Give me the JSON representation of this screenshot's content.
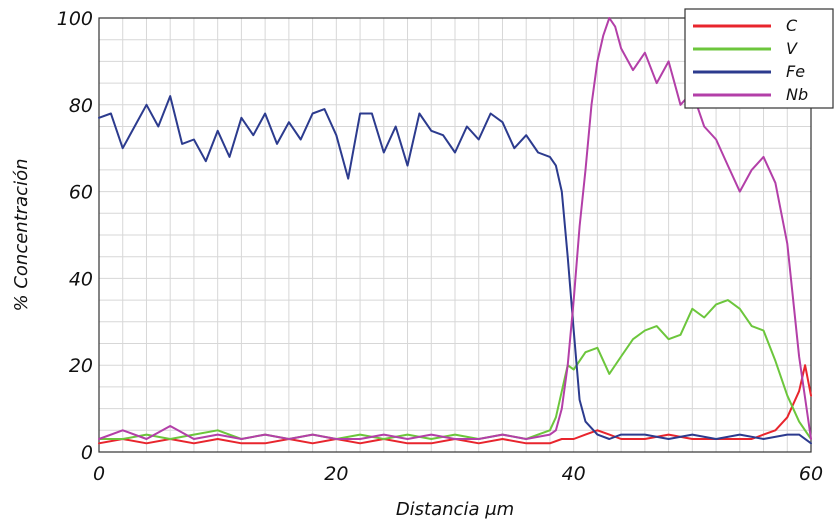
{
  "chart_data": {
    "type": "line",
    "xlabel": "Distancia μm",
    "ylabel": "% Concentración",
    "xlim": [
      0,
      60
    ],
    "ylim": [
      0,
      100
    ],
    "x_ticks": [
      0,
      20,
      40,
      60
    ],
    "y_ticks": [
      0,
      20,
      40,
      60,
      80,
      100
    ],
    "grid": true,
    "legend_position": "top-right",
    "series": [
      {
        "name": "C",
        "color": "#e8252d",
        "x": [
          0,
          2,
          4,
          6,
          8,
          10,
          12,
          14,
          16,
          18,
          20,
          22,
          24,
          26,
          28,
          30,
          32,
          34,
          36,
          38,
          39,
          40,
          41,
          42,
          43,
          44,
          46,
          48,
          50,
          52,
          54,
          55,
          56,
          57,
          58,
          59,
          59.5,
          60
        ],
        "values": [
          2,
          3,
          2,
          3,
          2,
          3,
          2,
          2,
          3,
          2,
          3,
          2,
          3,
          2,
          2,
          3,
          2,
          3,
          2,
          2,
          3,
          3,
          4,
          5,
          4,
          3,
          3,
          4,
          3,
          3,
          3,
          3,
          4,
          5,
          8,
          14,
          20,
          13
        ]
      },
      {
        "name": "V",
        "color": "#6cc63c",
        "x": [
          0,
          2,
          4,
          6,
          8,
          10,
          12,
          14,
          16,
          18,
          20,
          22,
          24,
          26,
          28,
          30,
          32,
          34,
          36,
          37,
          38,
          38.5,
          39,
          39.5,
          40,
          41,
          42,
          43,
          44,
          45,
          46,
          47,
          48,
          49,
          50,
          51,
          52,
          53,
          54,
          55,
          56,
          57,
          58,
          59,
          60
        ],
        "values": [
          3,
          3,
          4,
          3,
          4,
          5,
          3,
          4,
          3,
          4,
          3,
          4,
          3,
          4,
          3,
          4,
          3,
          4,
          3,
          4,
          5,
          8,
          14,
          20,
          19,
          23,
          24,
          18,
          22,
          26,
          28,
          29,
          26,
          27,
          33,
          31,
          34,
          35,
          33,
          29,
          28,
          21,
          13,
          7,
          3
        ]
      },
      {
        "name": "Fe",
        "color": "#2c3b8e",
        "x": [
          0,
          1,
          2,
          3,
          4,
          5,
          6,
          7,
          8,
          9,
          10,
          11,
          12,
          13,
          14,
          15,
          16,
          17,
          18,
          19,
          20,
          21,
          22,
          23,
          24,
          25,
          26,
          27,
          28,
          29,
          30,
          31,
          32,
          33,
          34,
          35,
          36,
          37,
          38,
          38.5,
          39,
          39.5,
          40,
          40.5,
          41,
          42,
          43,
          44,
          46,
          48,
          50,
          52,
          54,
          56,
          58,
          59,
          60
        ],
        "values": [
          77,
          78,
          70,
          75,
          80,
          75,
          82,
          71,
          72,
          67,
          74,
          68,
          77,
          73,
          78,
          71,
          76,
          72,
          78,
          79,
          73,
          63,
          78,
          78,
          69,
          75,
          66,
          78,
          74,
          73,
          69,
          75,
          72,
          78,
          76,
          70,
          73,
          69,
          68,
          66,
          60,
          45,
          28,
          12,
          7,
          4,
          3,
          4,
          4,
          3,
          4,
          3,
          4,
          3,
          4,
          4,
          2
        ]
      },
      {
        "name": "Nb",
        "color": "#b33fa8",
        "x": [
          0,
          2,
          4,
          6,
          8,
          10,
          12,
          14,
          16,
          18,
          20,
          22,
          24,
          26,
          28,
          30,
          32,
          34,
          36,
          38,
          38.5,
          39,
          39.5,
          40,
          40.5,
          41,
          41.5,
          42,
          42.5,
          43,
          43.5,
          44,
          45,
          46,
          47,
          48,
          49,
          50,
          51,
          52,
          53,
          54,
          55,
          56,
          57,
          58,
          59,
          60
        ],
        "values": [
          3,
          5,
          3,
          6,
          3,
          4,
          3,
          4,
          3,
          4,
          3,
          3,
          4,
          3,
          4,
          3,
          3,
          4,
          3,
          4,
          5,
          10,
          20,
          35,
          52,
          65,
          80,
          90,
          96,
          100,
          98,
          93,
          88,
          92,
          85,
          90,
          80,
          83,
          75,
          72,
          66,
          60,
          65,
          68,
          62,
          48,
          22,
          3
        ]
      }
    ]
  }
}
